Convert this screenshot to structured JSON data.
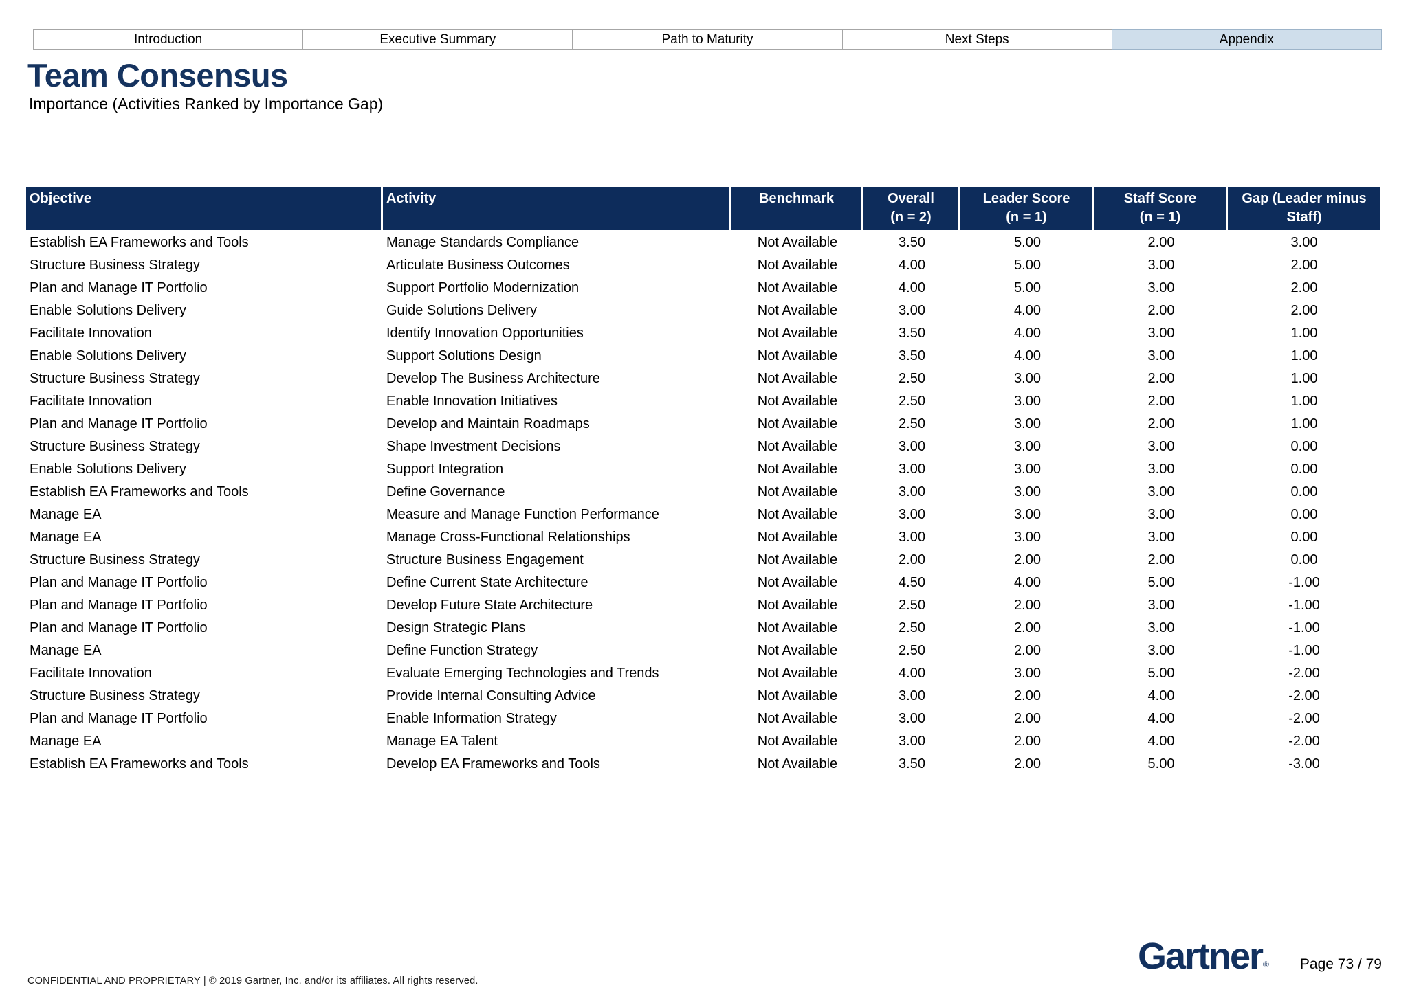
{
  "colors": {
    "navy": "#0d2c5b",
    "title_navy": "#15335f",
    "tab_active_bg": "#cfdeeb"
  },
  "tabs": [
    {
      "label": "Introduction",
      "active": false
    },
    {
      "label": "Executive Summary",
      "active": false
    },
    {
      "label": "Path to Maturity",
      "active": false
    },
    {
      "label": "Next Steps",
      "active": false
    },
    {
      "label": "Appendix",
      "active": true
    }
  ],
  "header": {
    "title": "Team Consensus",
    "subtitle": "Importance (Activities Ranked by Importance Gap)"
  },
  "table": {
    "columns": [
      {
        "key": "objective",
        "label": "Objective",
        "sublabel": ""
      },
      {
        "key": "activity",
        "label": "Activity",
        "sublabel": ""
      },
      {
        "key": "benchmark",
        "label": "Benchmark",
        "sublabel": ""
      },
      {
        "key": "overall",
        "label": "Overall",
        "sublabel": "(n = 2)"
      },
      {
        "key": "leader-score",
        "label": "Leader Score",
        "sublabel": "(n = 1)"
      },
      {
        "key": "staff-score",
        "label": "Staff Score",
        "sublabel": "(n = 1)"
      },
      {
        "key": "gap",
        "label": "Gap (Leader minus Staff)",
        "sublabel": ""
      }
    ],
    "rows": [
      [
        "Establish EA Frameworks and Tools",
        "Manage Standards Compliance",
        "Not Available",
        "3.50",
        "5.00",
        "2.00",
        "3.00"
      ],
      [
        "Structure Business Strategy",
        "Articulate Business Outcomes",
        "Not Available",
        "4.00",
        "5.00",
        "3.00",
        "2.00"
      ],
      [
        "Plan and Manage IT Portfolio",
        "Support Portfolio Modernization",
        "Not Available",
        "4.00",
        "5.00",
        "3.00",
        "2.00"
      ],
      [
        "Enable Solutions Delivery",
        "Guide Solutions Delivery",
        "Not Available",
        "3.00",
        "4.00",
        "2.00",
        "2.00"
      ],
      [
        "Facilitate Innovation",
        "Identify Innovation Opportunities",
        "Not Available",
        "3.50",
        "4.00",
        "3.00",
        "1.00"
      ],
      [
        "Enable Solutions Delivery",
        "Support Solutions Design",
        "Not Available",
        "3.50",
        "4.00",
        "3.00",
        "1.00"
      ],
      [
        "Structure Business Strategy",
        "Develop The Business Architecture",
        "Not Available",
        "2.50",
        "3.00",
        "2.00",
        "1.00"
      ],
      [
        "Facilitate Innovation",
        "Enable Innovation Initiatives",
        "Not Available",
        "2.50",
        "3.00",
        "2.00",
        "1.00"
      ],
      [
        "Plan and Manage IT Portfolio",
        "Develop and Maintain Roadmaps",
        "Not Available",
        "2.50",
        "3.00",
        "2.00",
        "1.00"
      ],
      [
        "Structure Business Strategy",
        "Shape Investment Decisions",
        "Not Available",
        "3.00",
        "3.00",
        "3.00",
        "0.00"
      ],
      [
        "Enable Solutions Delivery",
        "Support Integration",
        "Not Available",
        "3.00",
        "3.00",
        "3.00",
        "0.00"
      ],
      [
        "Establish EA Frameworks and Tools",
        "Define Governance",
        "Not Available",
        "3.00",
        "3.00",
        "3.00",
        "0.00"
      ],
      [
        "Manage EA",
        "Measure and Manage Function Performance",
        "Not Available",
        "3.00",
        "3.00",
        "3.00",
        "0.00"
      ],
      [
        "Manage EA",
        "Manage Cross-Functional Relationships",
        "Not Available",
        "3.00",
        "3.00",
        "3.00",
        "0.00"
      ],
      [
        "Structure Business Strategy",
        "Structure Business Engagement",
        "Not Available",
        "2.00",
        "2.00",
        "2.00",
        "0.00"
      ],
      [
        "Plan and Manage IT Portfolio",
        "Define Current State Architecture",
        "Not Available",
        "4.50",
        "4.00",
        "5.00",
        "-1.00"
      ],
      [
        "Plan and Manage IT Portfolio",
        "Develop Future State Architecture",
        "Not Available",
        "2.50",
        "2.00",
        "3.00",
        "-1.00"
      ],
      [
        "Plan and Manage IT Portfolio",
        "Design Strategic Plans",
        "Not Available",
        "2.50",
        "2.00",
        "3.00",
        "-1.00"
      ],
      [
        "Manage EA",
        "Define Function Strategy",
        "Not Available",
        "2.50",
        "2.00",
        "3.00",
        "-1.00"
      ],
      [
        "Facilitate Innovation",
        "Evaluate Emerging Technologies and Trends",
        "Not Available",
        "4.00",
        "3.00",
        "5.00",
        "-2.00"
      ],
      [
        "Structure Business Strategy",
        "Provide Internal Consulting Advice",
        "Not Available",
        "3.00",
        "2.00",
        "4.00",
        "-2.00"
      ],
      [
        "Plan and Manage IT Portfolio",
        "Enable Information Strategy",
        "Not Available",
        "3.00",
        "2.00",
        "4.00",
        "-2.00"
      ],
      [
        "Manage EA",
        "Manage EA Talent",
        "Not Available",
        "3.00",
        "2.00",
        "4.00",
        "-2.00"
      ],
      [
        "Establish EA Frameworks and Tools",
        "Develop EA Frameworks and Tools",
        "Not Available",
        "3.50",
        "2.00",
        "5.00",
        "-3.00"
      ]
    ]
  },
  "footer": {
    "confidential": "CONFIDENTIAL AND PROPRIETARY  |  © 2019 Gartner, Inc. and/or its affiliates. All rights reserved.",
    "logo_text": "Gartner",
    "logo_mark": "®",
    "page_label": "Page 73 / 79"
  }
}
